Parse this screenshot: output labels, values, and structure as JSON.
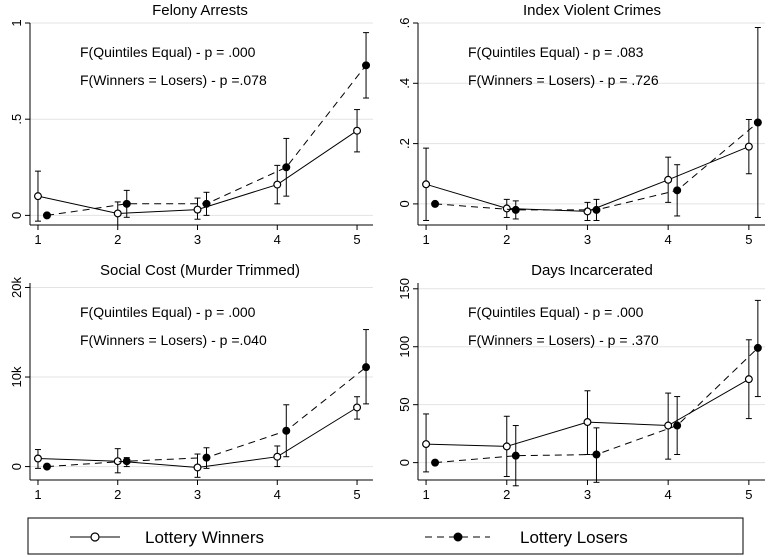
{
  "legend": {
    "winners_label": "Lottery Winners",
    "losers_label": "Lottery Losers"
  },
  "chart_data": [
    {
      "type": "line",
      "title": "Felony Arrests",
      "x": [
        1,
        2,
        3,
        4,
        5
      ],
      "xlim": [
        0.9,
        5.2
      ],
      "ylim": [
        -0.05,
        1.0
      ],
      "yticks": [
        0,
        0.5,
        1
      ],
      "ytick_labels": [
        "0",
        ".5",
        "1"
      ],
      "annotations": [
        "F(Quintiles Equal) - p = .000",
        "F(Winners = Losers) - p =.078"
      ],
      "series": [
        {
          "name": "Lottery Winners",
          "style": "solid",
          "marker": "hollow",
          "values": [
            0.1,
            0.01,
            0.03,
            0.16,
            0.44
          ],
          "lower": [
            -0.03,
            -0.05,
            -0.02,
            0.06,
            0.33
          ],
          "upper": [
            0.23,
            0.07,
            0.09,
            0.26,
            0.55
          ]
        },
        {
          "name": "Lottery Losers",
          "style": "dashed",
          "marker": "filled",
          "values": [
            0.0,
            0.06,
            0.06,
            0.25,
            0.78
          ],
          "lower": [
            0.0,
            -0.01,
            0.0,
            0.1,
            0.61
          ],
          "upper": [
            0.0,
            0.13,
            0.12,
            0.4,
            0.95
          ]
        }
      ]
    },
    {
      "type": "line",
      "title": "Index Violent Crimes",
      "x": [
        1,
        2,
        3,
        4,
        5
      ],
      "xlim": [
        0.9,
        5.2
      ],
      "ylim": [
        -0.07,
        0.6
      ],
      "yticks": [
        0,
        0.2,
        0.4,
        0.6
      ],
      "ytick_labels": [
        "0",
        ".2",
        ".4",
        ".6"
      ],
      "annotations": [
        "F(Quintiles Equal) - p = .083",
        "F(Winners = Losers) - p = .726"
      ],
      "series": [
        {
          "name": "Lottery Winners",
          "style": "solid",
          "marker": "hollow",
          "values": [
            0.065,
            -0.015,
            -0.025,
            0.08,
            0.19
          ],
          "lower": [
            -0.055,
            -0.045,
            -0.055,
            0.005,
            0.1
          ],
          "upper": [
            0.185,
            0.015,
            0.005,
            0.155,
            0.28
          ]
        },
        {
          "name": "Lottery Losers",
          "style": "dashed",
          "marker": "filled",
          "values": [
            0.0,
            -0.02,
            -0.02,
            0.045,
            0.27
          ],
          "lower": [
            0.0,
            -0.05,
            -0.055,
            -0.04,
            -0.045
          ],
          "upper": [
            0.0,
            0.01,
            0.015,
            0.13,
            0.585
          ]
        }
      ]
    },
    {
      "type": "line",
      "title": "Social Cost (Murder Trimmed)",
      "x": [
        1,
        2,
        3,
        4,
        5
      ],
      "xlim": [
        0.9,
        5.2
      ],
      "ylim": [
        -1500,
        20500
      ],
      "yticks": [
        0,
        10000,
        20000
      ],
      "ytick_labels": [
        "0",
        "10k",
        "20k"
      ],
      "annotations": [
        "F(Quintiles Equal) - p = .000",
        "F(Winners = Losers) - p =.040"
      ],
      "series": [
        {
          "name": "Lottery Winners",
          "style": "solid",
          "marker": "hollow",
          "values": [
            900,
            600,
            -100,
            1100,
            6600
          ],
          "lower": [
            -200,
            -700,
            -1200,
            0,
            5300
          ],
          "upper": [
            1900,
            2000,
            1400,
            2300,
            7800
          ]
        },
        {
          "name": "Lottery Losers",
          "style": "dashed",
          "marker": "filled",
          "values": [
            0,
            600,
            1000,
            4000,
            11100
          ],
          "lower": [
            0,
            0,
            -200,
            1100,
            7000
          ],
          "upper": [
            0,
            1000,
            2100,
            6900,
            15300
          ]
        }
      ]
    },
    {
      "type": "line",
      "title": "Days Incarcerated",
      "x": [
        1,
        2,
        3,
        4,
        5
      ],
      "xlim": [
        0.9,
        5.2
      ],
      "ylim": [
        -15,
        155
      ],
      "yticks": [
        0,
        50,
        100,
        150
      ],
      "ytick_labels": [
        "0",
        "50",
        "100",
        "150"
      ],
      "annotations": [
        "F(Quintiles Equal) - p = .000",
        "F(Winners = Losers) - p = .370"
      ],
      "series": [
        {
          "name": "Lottery Winners",
          "style": "solid",
          "marker": "hollow",
          "values": [
            16,
            14,
            35,
            32,
            72
          ],
          "lower": [
            -8,
            -12,
            7,
            3,
            38
          ],
          "upper": [
            42,
            40,
            62,
            60,
            106
          ]
        },
        {
          "name": "Lottery Losers",
          "style": "dashed",
          "marker": "filled",
          "values": [
            0,
            6,
            7,
            32,
            99
          ],
          "lower": [
            0,
            -20,
            -17,
            7,
            57
          ],
          "upper": [
            0,
            32,
            30,
            57,
            140
          ]
        }
      ]
    }
  ]
}
